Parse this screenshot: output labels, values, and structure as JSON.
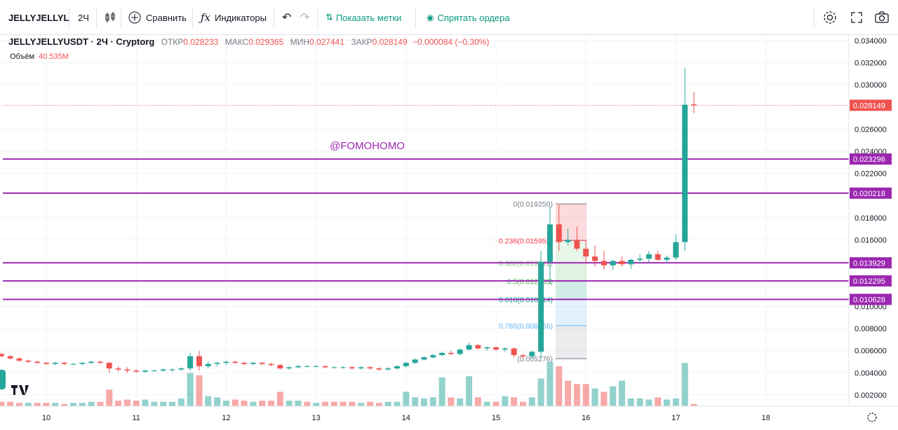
{
  "toolbar": {
    "symbol": "JELLYJELLYL",
    "interval": "2Ч",
    "compare": "Сравнить",
    "indicators": "Индикаторы",
    "show_marks": "Показать метки",
    "hide_orders": "Спрятать ордера"
  },
  "legend": {
    "symbol": "JELLYJELLYUSDT · 2Ч · Cryptorg",
    "open_label": "ОТКР",
    "open": "0.028233",
    "high_label": "МАКС",
    "high": "0.029365",
    "low_label": "МИН",
    "low": "0.027441",
    "close_label": "ЗАКР",
    "close": "0.028149",
    "change": "−0.000084 (−0.30%)"
  },
  "volume": {
    "label": "Объём",
    "value": "40.535M"
  },
  "colors": {
    "up": "#26a69a",
    "down": "#ef5350",
    "level": "#9c27b0",
    "accent": "#2962ff"
  },
  "chart_data": {
    "type": "candlestick",
    "title": "JELLYJELLYUSDT · 2Ч · Cryptorg",
    "ylim": [
      0.0,
      0.035
    ],
    "y_ticks": [
      "0.034000",
      "0.032000",
      "0.030000",
      "0.026000",
      "0.024000",
      "0.022000",
      "0.018000",
      "0.016000",
      "0.010000",
      "0.008000",
      "0.006000",
      "0.004000",
      "0.002000"
    ],
    "x_ticks": [
      "10",
      "11",
      "12",
      "13",
      "14",
      "15",
      "16",
      "17",
      "18"
    ],
    "last_price": "0.028149",
    "watermark": "@FOMOHOMO",
    "horizontal_levels": [
      "0.023296",
      "0.020218",
      "0.013929",
      "0.012295",
      "0.010628"
    ],
    "fibonacci": [
      {
        "label": "0(0.019250)",
        "value": 0.01925,
        "color": "#787b86"
      },
      {
        "label": "0.236(0.015952)",
        "value": 0.015952,
        "color": "#f23645"
      },
      {
        "label": "0.382(0.013912)",
        "value": 0.013912,
        "color": "#81c784"
      },
      {
        "label": "0.5(0.012263)",
        "value": 0.012263,
        "color": "#4caf50"
      },
      {
        "label": "0.618(0.010614)",
        "value": 0.010614,
        "color": "#089981"
      },
      {
        "label": "0.786(0.008266)",
        "value": 0.008266,
        "color": "#64b5f6"
      },
      {
        "label": "(0.005276)",
        "value": 0.005276,
        "color": "#787b86"
      }
    ],
    "candles": [
      [
        9.5,
        0.0057,
        0.0058,
        0.0054,
        0.0055
      ],
      [
        9.6,
        0.0055,
        0.0056,
        0.0052,
        0.0053
      ],
      [
        9.7,
        0.0053,
        0.0054,
        0.005,
        0.0051
      ],
      [
        9.8,
        0.0051,
        0.0052,
        0.0049,
        0.005
      ],
      [
        9.9,
        0.005,
        0.0051,
        0.0048,
        0.0049
      ],
      [
        10.0,
        0.0049,
        0.005,
        0.0047,
        0.0048
      ],
      [
        10.1,
        0.0048,
        0.005,
        0.0047,
        0.0049
      ],
      [
        10.2,
        0.0049,
        0.005,
        0.0047,
        0.0048
      ],
      [
        10.3,
        0.0048,
        0.0049,
        0.0047,
        0.0048
      ],
      [
        10.4,
        0.0048,
        0.005,
        0.0047,
        0.0049
      ],
      [
        10.5,
        0.0049,
        0.0051,
        0.0048,
        0.005
      ],
      [
        10.6,
        0.005,
        0.0051,
        0.0048,
        0.0049
      ],
      [
        10.7,
        0.0049,
        0.005,
        0.004,
        0.0044
      ],
      [
        10.8,
        0.0044,
        0.0046,
        0.0041,
        0.0043
      ],
      [
        10.9,
        0.0043,
        0.0045,
        0.004,
        0.0042
      ],
      [
        11.0,
        0.0042,
        0.0043,
        0.004,
        0.0041
      ],
      [
        11.1,
        0.0041,
        0.0043,
        0.004,
        0.0042
      ],
      [
        11.2,
        0.0042,
        0.0043,
        0.0041,
        0.0042
      ],
      [
        11.3,
        0.0042,
        0.0044,
        0.0041,
        0.0043
      ],
      [
        11.4,
        0.0043,
        0.0044,
        0.0041,
        0.0043
      ],
      [
        11.5,
        0.0043,
        0.0045,
        0.0042,
        0.0044
      ],
      [
        11.6,
        0.0044,
        0.0058,
        0.0042,
        0.0055
      ],
      [
        11.7,
        0.0055,
        0.006,
        0.0042,
        0.0046
      ],
      [
        11.8,
        0.0046,
        0.005,
        0.0044,
        0.0048
      ],
      [
        11.9,
        0.0048,
        0.005,
        0.0046,
        0.0049
      ],
      [
        12.0,
        0.0049,
        0.0051,
        0.0047,
        0.005
      ],
      [
        12.1,
        0.005,
        0.0051,
        0.0048,
        0.0049
      ],
      [
        12.2,
        0.0049,
        0.005,
        0.0047,
        0.0048
      ],
      [
        12.3,
        0.0048,
        0.005,
        0.0047,
        0.0049
      ],
      [
        12.4,
        0.0049,
        0.005,
        0.0047,
        0.0048
      ],
      [
        12.5,
        0.0048,
        0.0049,
        0.0046,
        0.0047
      ],
      [
        12.6,
        0.0047,
        0.0048,
        0.0043,
        0.0044
      ],
      [
        12.7,
        0.0044,
        0.0046,
        0.0043,
        0.0045
      ],
      [
        12.8,
        0.0045,
        0.0047,
        0.0044,
        0.0046
      ],
      [
        12.9,
        0.0046,
        0.0047,
        0.0045,
        0.0046
      ],
      [
        13.0,
        0.0046,
        0.0047,
        0.0045,
        0.0046
      ],
      [
        13.1,
        0.0046,
        0.0047,
        0.0044,
        0.0045
      ],
      [
        13.2,
        0.0045,
        0.0046,
        0.0044,
        0.0045
      ],
      [
        13.3,
        0.0045,
        0.0046,
        0.0044,
        0.0045
      ],
      [
        13.4,
        0.0045,
        0.0046,
        0.0043,
        0.0044
      ],
      [
        13.5,
        0.0044,
        0.0046,
        0.0043,
        0.0045
      ],
      [
        13.6,
        0.0045,
        0.0046,
        0.0043,
        0.0044
      ],
      [
        13.7,
        0.0044,
        0.0045,
        0.0042,
        0.0043
      ],
      [
        13.8,
        0.0043,
        0.0045,
        0.0042,
        0.0044
      ],
      [
        13.9,
        0.0044,
        0.0047,
        0.0043,
        0.0046
      ],
      [
        14.0,
        0.0046,
        0.005,
        0.0045,
        0.0049
      ],
      [
        14.1,
        0.0049,
        0.0053,
        0.0048,
        0.0052
      ],
      [
        14.2,
        0.0052,
        0.0055,
        0.0051,
        0.0054
      ],
      [
        14.3,
        0.0054,
        0.0057,
        0.0053,
        0.0056
      ],
      [
        14.4,
        0.0056,
        0.0059,
        0.0055,
        0.0058
      ],
      [
        14.5,
        0.0058,
        0.006,
        0.0056,
        0.0057
      ],
      [
        14.6,
        0.0057,
        0.0062,
        0.0056,
        0.0061
      ],
      [
        14.7,
        0.0061,
        0.0067,
        0.006,
        0.0065
      ],
      [
        14.8,
        0.0065,
        0.0066,
        0.0061,
        0.0062
      ],
      [
        14.9,
        0.0062,
        0.0064,
        0.006,
        0.0063
      ],
      [
        15.0,
        0.0063,
        0.0064,
        0.006,
        0.0061
      ],
      [
        15.1,
        0.0061,
        0.0063,
        0.0059,
        0.0062
      ],
      [
        15.2,
        0.0062,
        0.0063,
        0.0054,
        0.0056
      ],
      [
        15.3,
        0.0056,
        0.0057,
        0.0053,
        0.0055
      ],
      [
        15.4,
        0.0055,
        0.006,
        0.0053,
        0.0059
      ],
      [
        15.5,
        0.0059,
        0.015,
        0.0053,
        0.014
      ],
      [
        15.6,
        0.014,
        0.019,
        0.012,
        0.0174
      ],
      [
        15.7,
        0.0174,
        0.0192,
        0.015,
        0.0158
      ],
      [
        15.8,
        0.0158,
        0.017,
        0.0155,
        0.016
      ],
      [
        15.9,
        0.016,
        0.0172,
        0.015,
        0.0152
      ],
      [
        16.0,
        0.0152,
        0.016,
        0.014,
        0.0145
      ],
      [
        16.1,
        0.0145,
        0.0155,
        0.0136,
        0.0141
      ],
      [
        16.2,
        0.0141,
        0.015,
        0.0133,
        0.0137
      ],
      [
        16.3,
        0.0137,
        0.0142,
        0.0133,
        0.0141
      ],
      [
        16.4,
        0.0141,
        0.0145,
        0.0136,
        0.0138
      ],
      [
        16.5,
        0.0138,
        0.0143,
        0.0134,
        0.0142
      ],
      [
        16.6,
        0.0142,
        0.0147,
        0.0139,
        0.0143
      ],
      [
        16.7,
        0.0143,
        0.015,
        0.014,
        0.0147
      ],
      [
        16.8,
        0.0147,
        0.015,
        0.0141,
        0.0142
      ],
      [
        16.9,
        0.0142,
        0.0146,
        0.0139,
        0.0144
      ],
      [
        17.0,
        0.0144,
        0.0165,
        0.0142,
        0.0158
      ],
      [
        17.1,
        0.0158,
        0.0315,
        0.015,
        0.0282
      ],
      [
        17.2,
        0.028233,
        0.029365,
        0.027441,
        0.028149
      ]
    ],
    "volumes": [
      [
        9.5,
        0.0004,
        0
      ],
      [
        9.6,
        0.0004,
        0
      ],
      [
        9.7,
        0.0003,
        0
      ],
      [
        9.8,
        0.0003,
        1
      ],
      [
        9.9,
        0.0003,
        0
      ],
      [
        10.0,
        0.0003,
        0
      ],
      [
        10.1,
        0.0003,
        1
      ],
      [
        10.2,
        0.0002,
        0
      ],
      [
        10.3,
        0.0003,
        1
      ],
      [
        10.4,
        0.0003,
        1
      ],
      [
        10.5,
        0.0004,
        1
      ],
      [
        10.6,
        0.0004,
        0
      ],
      [
        10.7,
        0.0015,
        0
      ],
      [
        10.8,
        0.0005,
        0
      ],
      [
        10.9,
        0.0006,
        0
      ],
      [
        11.0,
        0.0005,
        0
      ],
      [
        11.1,
        0.0006,
        1
      ],
      [
        11.2,
        0.0004,
        1
      ],
      [
        11.3,
        0.0004,
        1
      ],
      [
        11.4,
        0.0004,
        1
      ],
      [
        11.5,
        0.0007,
        1
      ],
      [
        11.6,
        0.003,
        1
      ],
      [
        11.7,
        0.0028,
        0
      ],
      [
        11.8,
        0.0009,
        1
      ],
      [
        11.9,
        0.0008,
        1
      ],
      [
        12.0,
        0.0005,
        1
      ],
      [
        12.1,
        0.0006,
        0
      ],
      [
        12.2,
        0.0005,
        0
      ],
      [
        12.3,
        0.0004,
        1
      ],
      [
        12.4,
        0.0005,
        0
      ],
      [
        12.5,
        0.0005,
        0
      ],
      [
        12.6,
        0.0013,
        0
      ],
      [
        12.7,
        0.0005,
        1
      ],
      [
        12.8,
        0.0005,
        1
      ],
      [
        12.9,
        0.0004,
        0
      ],
      [
        13.0,
        0.0003,
        1
      ],
      [
        13.1,
        0.0004,
        0
      ],
      [
        13.2,
        0.0004,
        0
      ],
      [
        13.3,
        0.0004,
        0
      ],
      [
        13.4,
        0.0004,
        0
      ],
      [
        13.5,
        0.0003,
        1
      ],
      [
        13.6,
        0.0004,
        0
      ],
      [
        13.7,
        0.0003,
        0
      ],
      [
        13.8,
        0.0004,
        1
      ],
      [
        13.9,
        0.0004,
        1
      ],
      [
        14.0,
        0.0013,
        1
      ],
      [
        14.1,
        0.0008,
        1
      ],
      [
        14.2,
        0.0007,
        1
      ],
      [
        14.3,
        0.0008,
        1
      ],
      [
        14.4,
        0.0026,
        1
      ],
      [
        14.5,
        0.0008,
        0
      ],
      [
        14.6,
        0.0007,
        1
      ],
      [
        14.7,
        0.0027,
        1
      ],
      [
        14.8,
        0.0008,
        0
      ],
      [
        14.9,
        0.0004,
        1
      ],
      [
        15.0,
        0.0004,
        0
      ],
      [
        15.1,
        0.0009,
        1
      ],
      [
        15.2,
        0.0008,
        0
      ],
      [
        15.3,
        0.0004,
        0
      ],
      [
        15.4,
        0.0008,
        1
      ],
      [
        15.5,
        0.0025,
        1
      ],
      [
        15.6,
        0.004,
        1
      ],
      [
        15.7,
        0.0036,
        0
      ],
      [
        15.8,
        0.0023,
        0
      ],
      [
        15.9,
        0.002,
        0
      ],
      [
        16.0,
        0.002,
        0
      ],
      [
        16.1,
        0.0016,
        1
      ],
      [
        16.2,
        0.0013,
        0
      ],
      [
        16.3,
        0.0018,
        1
      ],
      [
        16.4,
        0.0023,
        1
      ],
      [
        16.5,
        0.0007,
        1
      ],
      [
        16.6,
        0.0007,
        1
      ],
      [
        16.7,
        0.0006,
        1
      ],
      [
        16.8,
        0.0008,
        0
      ],
      [
        16.9,
        0.0006,
        1
      ],
      [
        17.0,
        0.0007,
        1
      ],
      [
        17.1,
        0.0039,
        1
      ],
      [
        17.2,
        0.0002,
        0
      ]
    ]
  }
}
